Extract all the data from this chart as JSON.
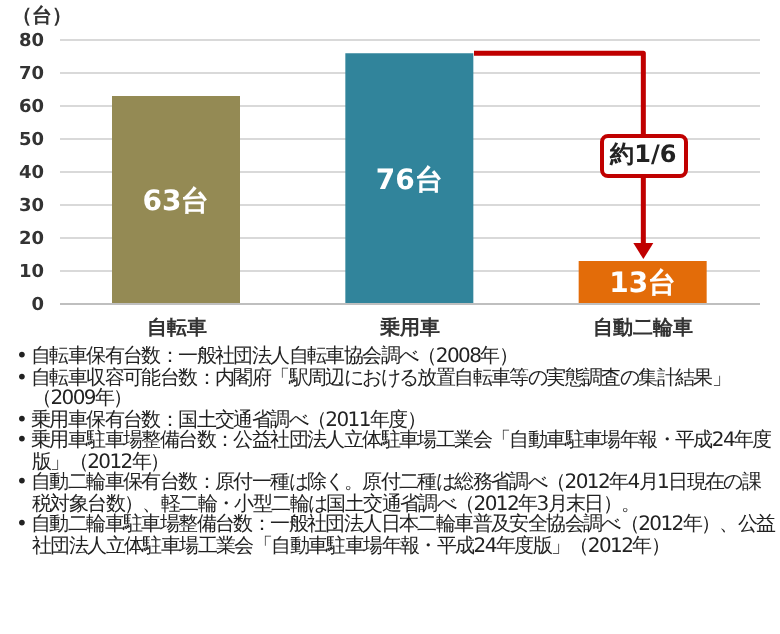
{
  "chart_data": {
    "type": "bar",
    "ylabel": "（台）",
    "categories": [
      "自転車",
      "乗用車",
      "自動二輪車"
    ],
    "values": [
      63,
      76,
      13
    ],
    "colors": [
      "#948a54",
      "#31849b",
      "#e36c09"
    ],
    "value_labels": [
      "63台",
      "76台",
      "13台"
    ],
    "ylim": [
      0,
      80
    ],
    "yticks": [
      0,
      10,
      20,
      30,
      40,
      50,
      60,
      70,
      80
    ],
    "grid": "y",
    "annotations": [
      "約1/6",
      "• 自転車保有台数：一般社団法人自転車協会調べ（2008年）",
      "• 自転車収容可能台数：内閣府「駅周辺における放置自転車等の実態調査の集計結果」（2009年）",
      "• 乗用車保有台数：国土交通省調べ（2011年度）",
      "• 乗用車駐車場整備台数：公益社団法人立体駐車場工業会「自動車駐車場年報・平成24年度版」（2012年）",
      "• 自動二輪車保有台数：原付一種は除く。原付二種は総務省調べ（2012年4月1日現在の課税対象台数）、軽二輪・小型二輪は国土交通省調べ（2012年3月末日）。",
      "• 自動二輪車駐車場整備台数：一般社団法人日本二輪車普及安全協会調べ（2012年）、公益社団法人立体駐車場工業会「自動車駐車場年報・平成24年度版」（2012年）"
    ]
  }
}
